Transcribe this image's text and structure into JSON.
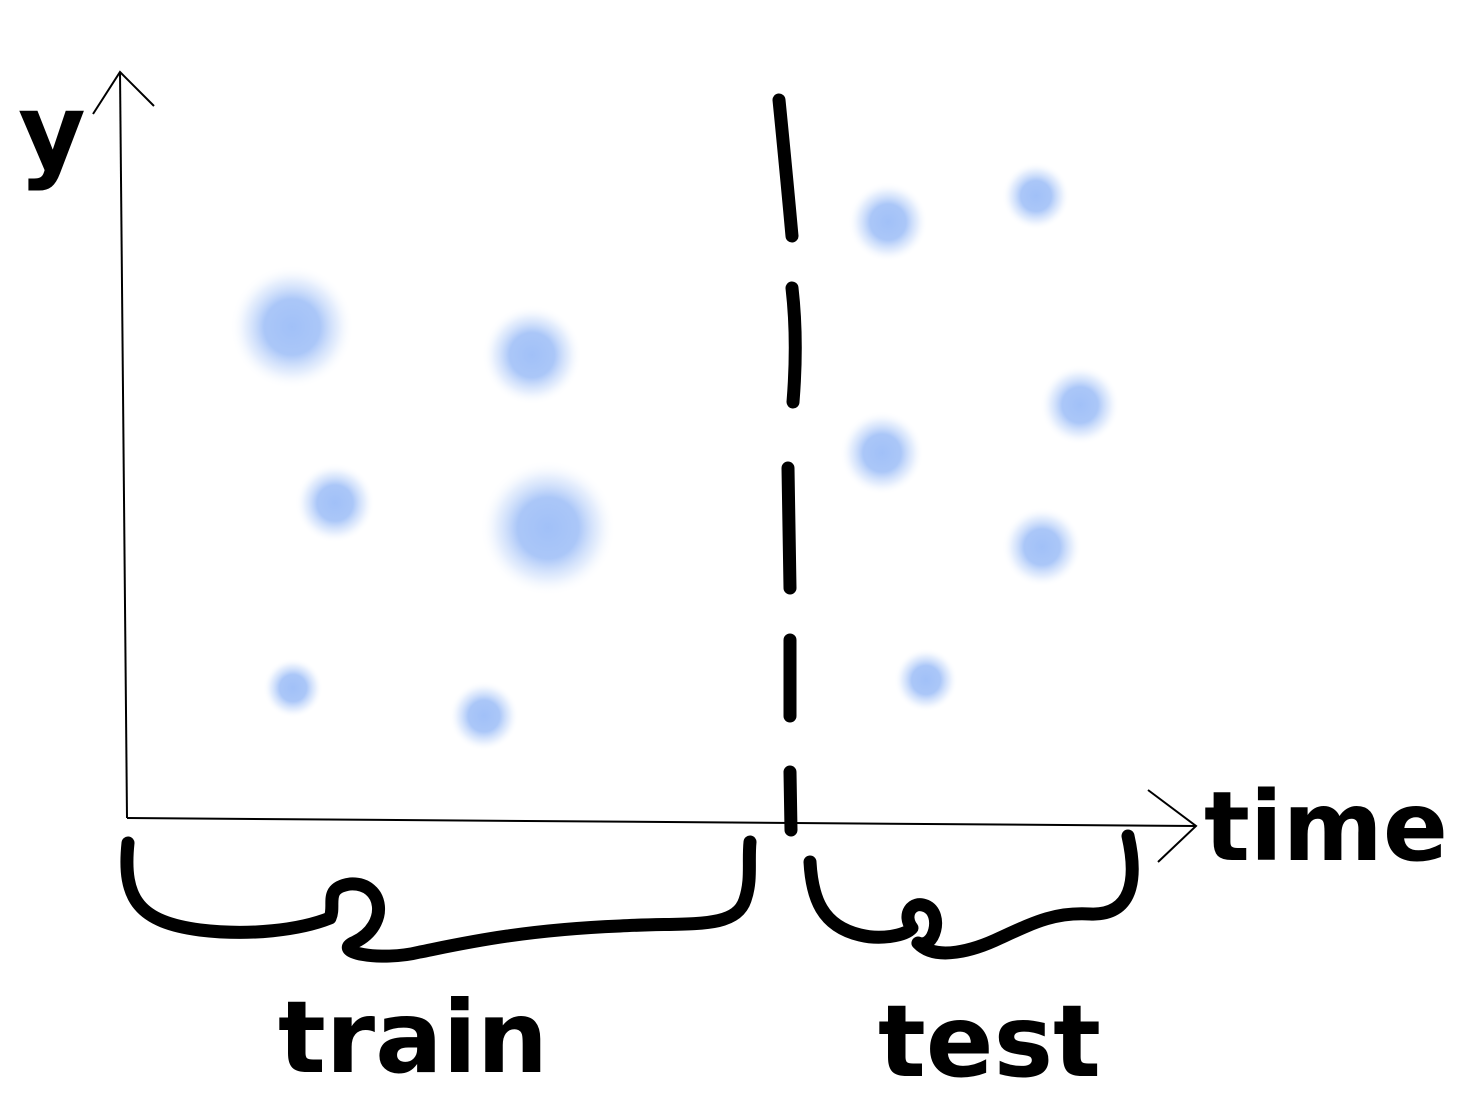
{
  "labels": {
    "y_axis": "y",
    "x_axis": "time",
    "train": "train",
    "test": "test"
  },
  "colors": {
    "ink": "#000000",
    "dot": "#9cbdf7",
    "background": "#ffffff"
  },
  "regions": [
    "train",
    "test"
  ]
}
